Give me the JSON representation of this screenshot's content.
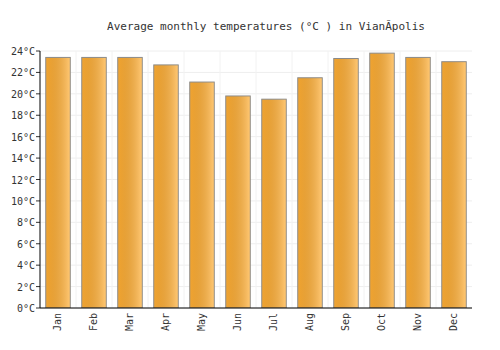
{
  "chart_data": {
    "type": "bar",
    "title": "Average monthly temperatures (°C ) in VianĂpolis",
    "categories": [
      "Jan",
      "Feb",
      "Mar",
      "Apr",
      "May",
      "Jun",
      "Jul",
      "Aug",
      "Sep",
      "Oct",
      "Nov",
      "Dec"
    ],
    "values": [
      23.4,
      23.4,
      23.4,
      22.7,
      21.1,
      19.8,
      19.5,
      21.5,
      23.3,
      23.8,
      23.4,
      23.0
    ],
    "color": "#ffae34",
    "ylim": [
      0,
      24
    ],
    "yticks": [
      {
        "value": 0,
        "label": "0°C"
      },
      {
        "value": 2,
        "label": "2°C"
      },
      {
        "value": 4,
        "label": "4°C"
      },
      {
        "value": 6,
        "label": "6°C"
      },
      {
        "value": 8,
        "label": "8°C"
      },
      {
        "value": 10,
        "label": "10°C"
      },
      {
        "value": 12,
        "label": "12°C"
      },
      {
        "value": 14,
        "label": "14°C"
      },
      {
        "value": 16,
        "label": "16°C"
      },
      {
        "value": 18,
        "label": "18°C"
      },
      {
        "value": 20,
        "label": "20°C"
      },
      {
        "value": 22,
        "label": "22°C"
      },
      {
        "value": 24,
        "label": "24°C"
      }
    ],
    "grid": true
  }
}
